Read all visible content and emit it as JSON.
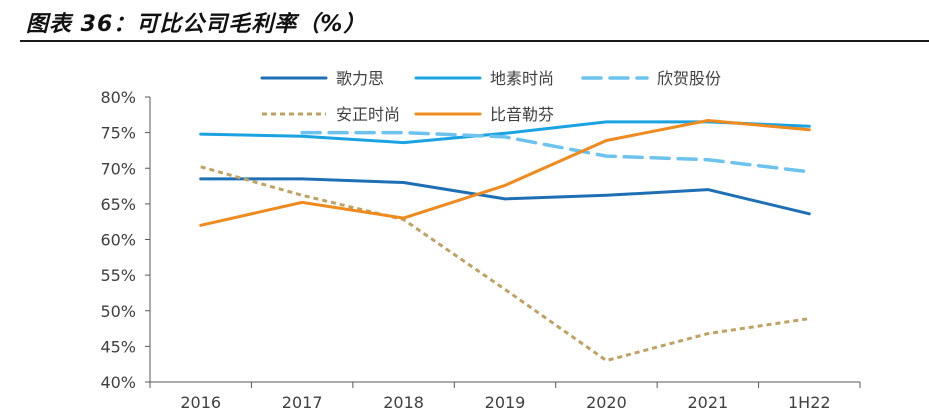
{
  "header": {
    "title": "图表 36：可比公司毛利率（%）"
  },
  "colors": {
    "header_rule": "#1a1a1a",
    "axis": "#595959",
    "text": "#404040"
  },
  "chart_data": {
    "type": "line",
    "title": "",
    "xlabel": "",
    "ylabel": "",
    "categories": [
      "2016",
      "2017",
      "2018",
      "2019",
      "2020",
      "2021",
      "1H22"
    ],
    "y_ticks": [
      "40%",
      "45%",
      "50%",
      "55%",
      "60%",
      "65%",
      "70%",
      "75%",
      "80%"
    ],
    "ylim": [
      40,
      80
    ],
    "grid": false,
    "legend_placement": "top",
    "series": [
      {
        "name": "歌力思",
        "color": "#1f6fb5",
        "dash": "solid",
        "values": [
          68.5,
          68.5,
          68.0,
          65.7,
          66.2,
          67.0,
          63.6
        ]
      },
      {
        "name": "地素时尚",
        "color": "#1aa3e0",
        "dash": "solid",
        "values": [
          74.8,
          74.5,
          73.6,
          74.9,
          76.5,
          76.5,
          75.9
        ]
      },
      {
        "name": "欣贺股份",
        "color": "#6cc3ee",
        "dash": "dashed",
        "values": [
          null,
          75.0,
          75.0,
          74.4,
          71.7,
          71.2,
          69.5
        ]
      },
      {
        "name": "安正时尚",
        "color": "#bfa263",
        "dash": "dotted",
        "values": [
          70.2,
          66.2,
          62.8,
          53.0,
          43.0,
          46.8,
          48.9
        ]
      },
      {
        "name": "比音勒芬",
        "color": "#ef8a1e",
        "dash": "solid",
        "values": [
          62.0,
          65.2,
          63.0,
          67.6,
          73.9,
          76.7,
          75.4
        ]
      }
    ]
  }
}
